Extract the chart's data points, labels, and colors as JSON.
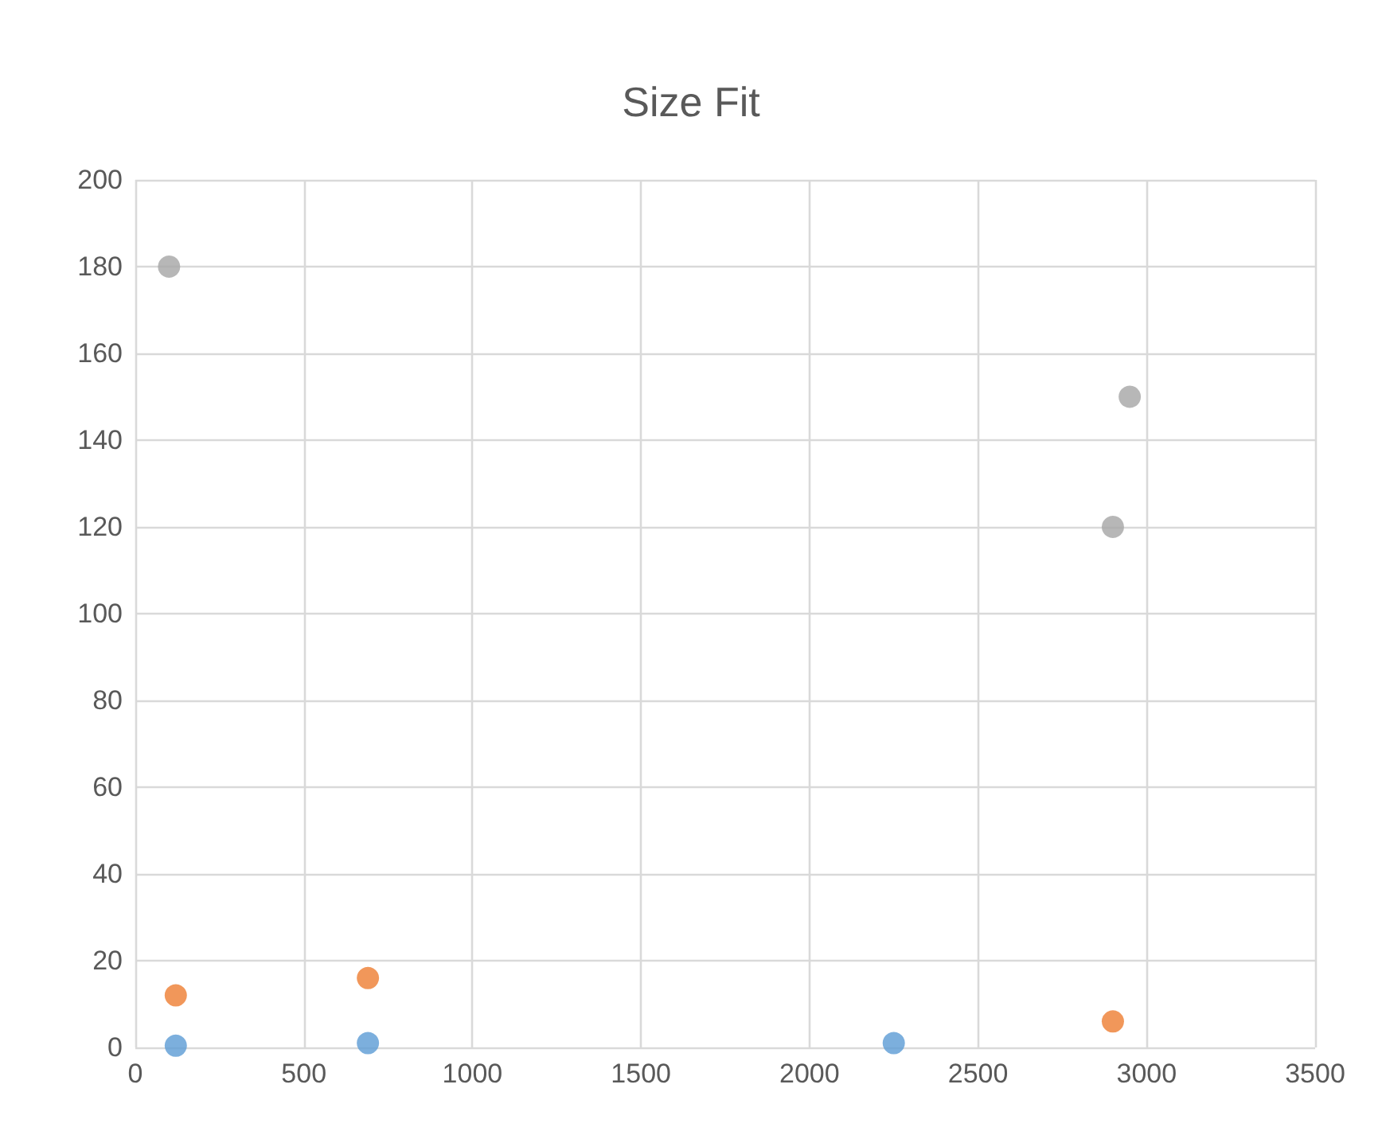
{
  "chart_data": {
    "type": "scatter",
    "title": "Size Fit",
    "series": [
      {
        "color": "#5b9bd5",
        "x": [
          120,
          690,
          2250
        ],
        "values": [
          0.4,
          1,
          1
        ]
      },
      {
        "color": "#ed7d31",
        "x": [
          120,
          690,
          2900
        ],
        "values": [
          12,
          16,
          6
        ]
      },
      {
        "color": "#a5a5a5",
        "x": [
          100,
          2900,
          2950
        ],
        "values": [
          180,
          120,
          150
        ]
      }
    ],
    "xlim": [
      0,
      3500
    ],
    "xticks": [
      0,
      500,
      1000,
      1500,
      2000,
      2500,
      3000,
      3500
    ],
    "ylim": [
      0,
      200
    ],
    "yticks": [
      0,
      20,
      40,
      60,
      80,
      100,
      120,
      140,
      160,
      180,
      200
    ],
    "grid": true,
    "marker": "circle"
  }
}
